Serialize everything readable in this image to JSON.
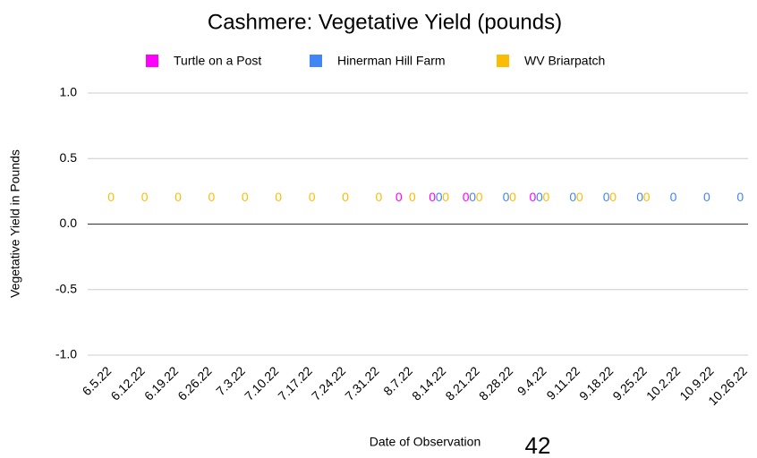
{
  "chart_data": {
    "type": "bar",
    "title": "Cashmere: Vegetative Yield (pounds)",
    "x_label": "Date of Observation",
    "y_label": "Vegetative Yield in Pounds",
    "categories": [
      "6.5.22",
      "6.12.22",
      "6.19.22",
      "6.26.22",
      "7.3.22",
      "7.10.22",
      "7.17.22",
      "7.24.22",
      "7.31.22",
      "8.7.22",
      "8.14.22",
      "8.21.22",
      "8.28.22",
      "9.4.22",
      "9.11.22",
      "9.18.22",
      "9.25.22",
      "10.2.22",
      "10.9.22",
      "10.26.22"
    ],
    "series": [
      {
        "name": "Turtle on a Post",
        "color": "#ff00ff",
        "values": [
          null,
          null,
          null,
          null,
          null,
          null,
          null,
          null,
          null,
          0,
          0,
          0,
          null,
          0,
          null,
          null,
          null,
          null,
          null,
          null
        ]
      },
      {
        "name": "Hinerman Hill Farm",
        "color": "#4285f4",
        "values": [
          null,
          null,
          null,
          null,
          null,
          null,
          null,
          null,
          null,
          null,
          0,
          0,
          0,
          0,
          0,
          0,
          0,
          0,
          0,
          0
        ]
      },
      {
        "name": "WV Briarpatch",
        "color": "#fbbc04",
        "values": [
          0,
          0,
          0,
          0,
          0,
          0,
          0,
          0,
          0,
          0,
          0,
          0,
          0,
          0,
          0,
          0,
          0,
          null,
          null,
          null
        ]
      }
    ],
    "ylim": [
      -1.0,
      1.0
    ],
    "yticks": [
      {
        "value": -1,
        "label": "-1.0"
      },
      {
        "value": -0.5,
        "label": "-0.5"
      },
      {
        "value": 0,
        "label": "0.0"
      },
      {
        "value": 0.5,
        "label": "0.5"
      },
      {
        "value": 1,
        "label": "1.0"
      }
    ],
    "grid": true,
    "legend": "top"
  },
  "page_number": "42"
}
